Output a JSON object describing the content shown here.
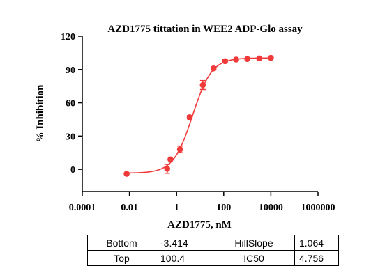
{
  "chart_data": {
    "type": "scatter",
    "title": "AZD1775 tittation in WEE2 ADP-Glo assay",
    "xlabel": "AZD1775, nM",
    "ylabel": "% Inhibition",
    "xscale": "log",
    "xlim": [
      0.0001,
      1000000
    ],
    "ylim": [
      -20,
      120
    ],
    "xticks": [
      0.0001,
      0.01,
      1,
      100,
      10000,
      1000000
    ],
    "xtick_labels": [
      "0.0001",
      "0.01",
      "1",
      "100",
      "10000",
      "1000000"
    ],
    "yticks": [
      0,
      30,
      60,
      90,
      120
    ],
    "ytick_labels": [
      "0",
      "30",
      "60",
      "90",
      "120"
    ],
    "point_color": "#f03a3a",
    "grid": false,
    "legend": "none",
    "series": [
      {
        "x": [
          0.0076,
          0.4,
          0.55,
          1.4,
          3.6,
          13,
          37,
          114,
          336,
          1000,
          3200,
          10000
        ],
        "y": [
          -4.0,
          0.5,
          9.0,
          18.0,
          47.0,
          76.0,
          91.0,
          97.5,
          99.0,
          99.5,
          100.0,
          100.5
        ],
        "err": [
          1.0,
          4.0,
          1.0,
          3.0,
          1.5,
          4.0,
          1.5,
          1.5,
          1.0,
          1.0,
          1.0,
          1.0
        ]
      }
    ],
    "fit": {
      "model": "four-parameter logistic",
      "color": "#f03a3a",
      "params": {
        "bottom": -3.414,
        "top": 100.4,
        "hillslope": 1.064,
        "ic50": 4.756
      }
    }
  },
  "table": {
    "rows": [
      [
        "Bottom",
        "-3.414",
        "HillSlope",
        "1.064"
      ],
      [
        "Top",
        "100.4",
        "IC50",
        "4.756"
      ]
    ]
  }
}
